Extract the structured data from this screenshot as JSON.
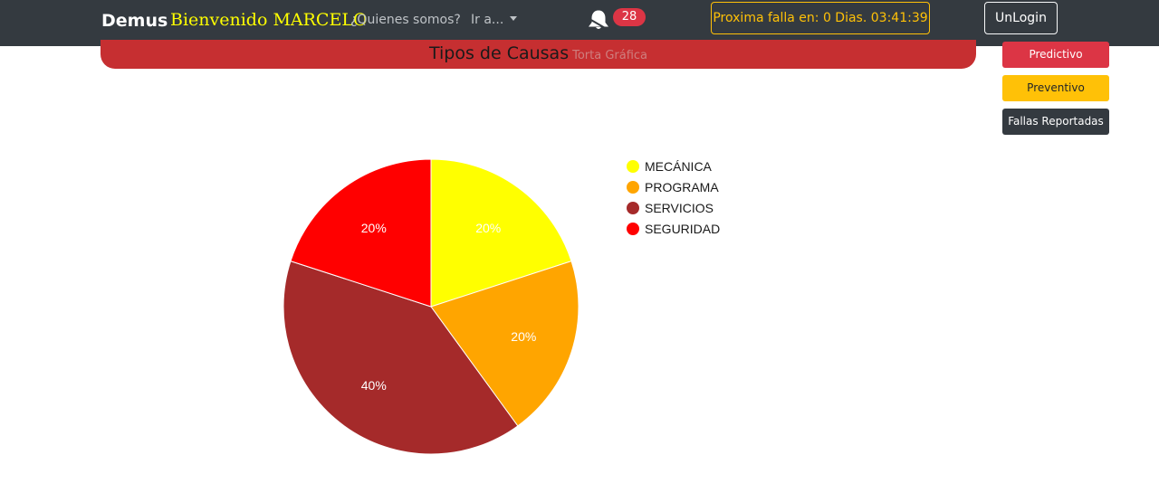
{
  "navbar": {
    "brand": "Demus",
    "welcome": "Bienvenido MARCELO",
    "about_label": "¿Quienes somos?",
    "goto_label": "Ir a...",
    "notification_count": "28",
    "countdown_text": "Proxima falla en: 0 Dias. 03:41:39",
    "logout_label": "UnLogin"
  },
  "header": {
    "title": "Tipos de Causas",
    "subtitle": "Torta Gráfica"
  },
  "side_buttons": {
    "predictive": "Predictivo",
    "preventive": "Preventivo",
    "reported": "Fallas Reportadas"
  },
  "colors": {
    "navbar_bg": "#343a40",
    "welcome": "#ffff00",
    "header_bar": "#c62f31",
    "badge": "#dc3545",
    "countdown_border": "#ffc107"
  },
  "icons": {
    "notifications": "bell-icon",
    "dropdown": "caret-down-icon"
  },
  "chart_data": {
    "type": "pie",
    "categories": [
      "MECÁNICA",
      "PROGRAMA",
      "SERVICIOS",
      "SEGURIDAD"
    ],
    "values": [
      20,
      20,
      40,
      20
    ],
    "labels": [
      "20%",
      "20%",
      "40%",
      "20%"
    ],
    "colors": [
      "#ffff00",
      "#ffa500",
      "#a52a2a",
      "#ff0000"
    ],
    "legend_position": "right"
  }
}
